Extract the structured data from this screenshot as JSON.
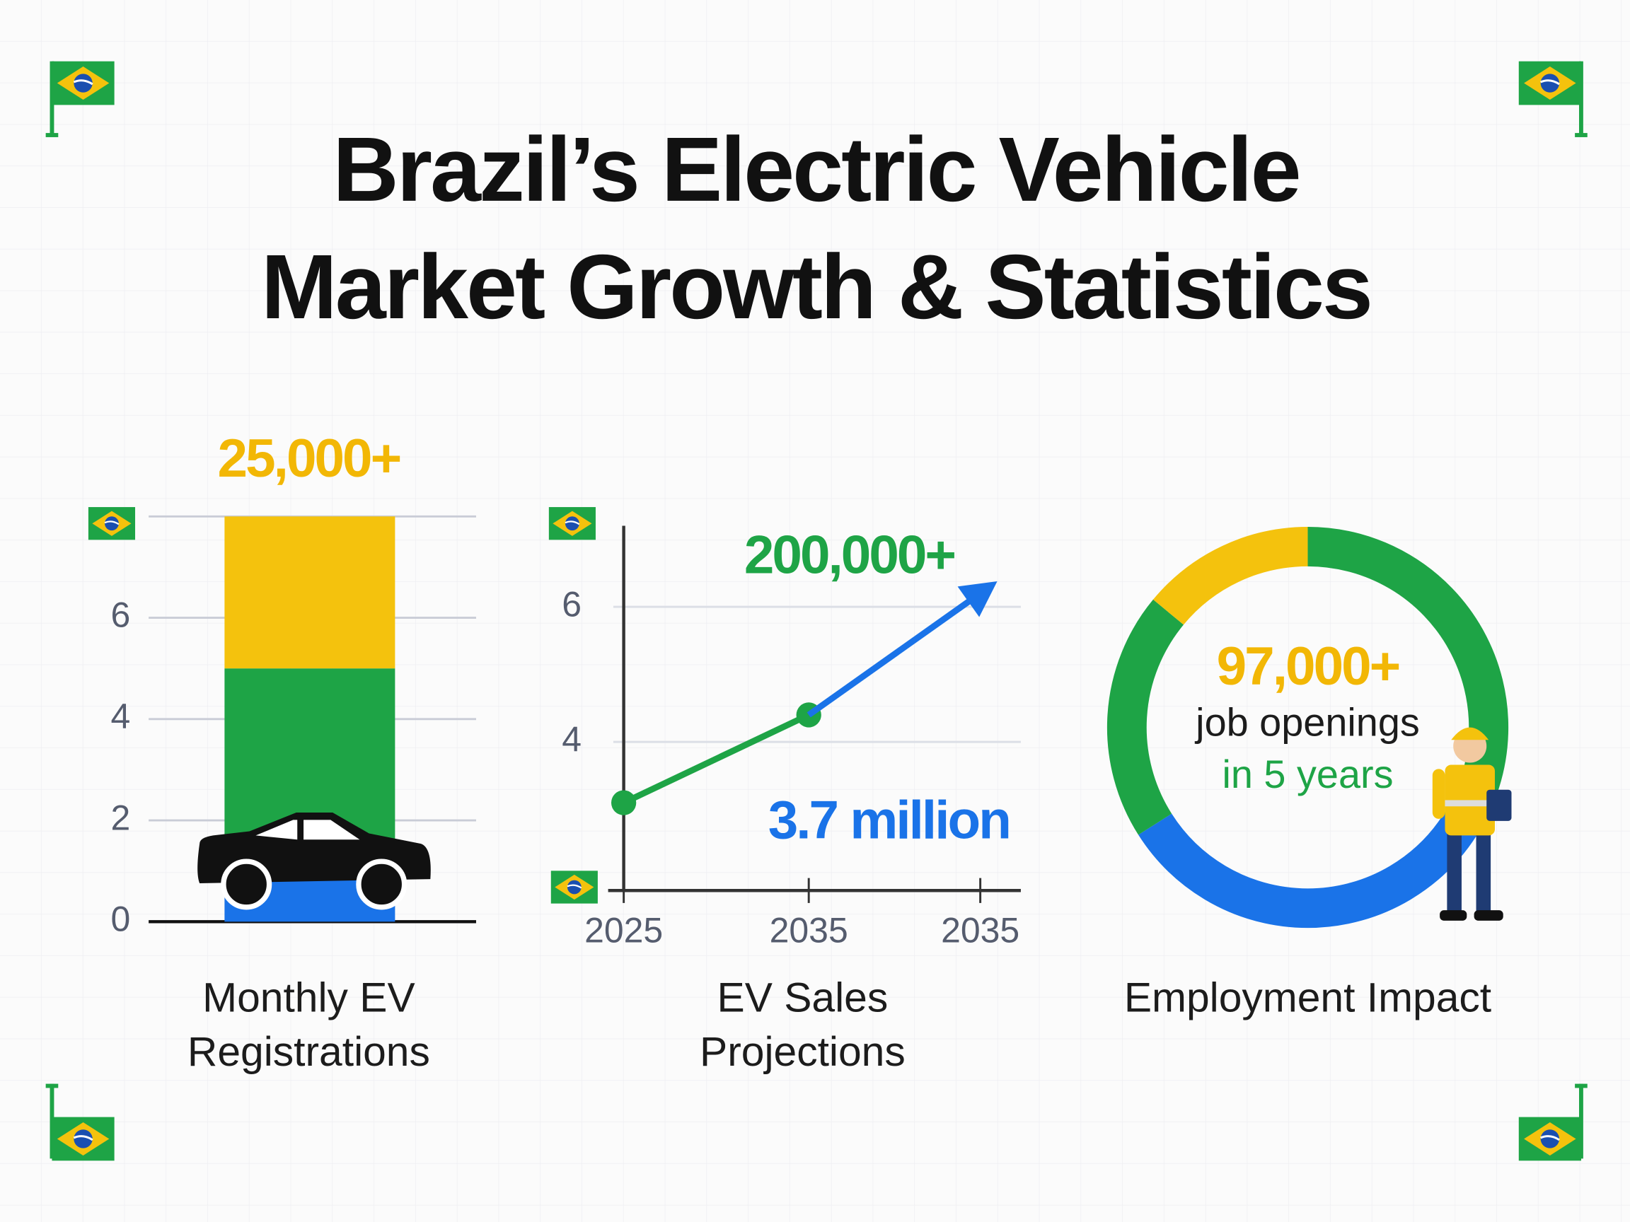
{
  "title": [
    "Brazil’s Electric Vehicle",
    "Market Growth & Statistics"
  ],
  "chart_data": [
    {
      "type": "bar",
      "label": [
        "Monthly EV",
        "Registrations"
      ],
      "annotation": "25,000+",
      "annotation_color": "#f2b705",
      "series": [
        {
          "color": "#1a73e8",
          "values": [
            1
          ]
        },
        {
          "color": "#1ea446",
          "values": [
            4
          ]
        },
        {
          "color": "#f4c20d",
          "values": [
            3
          ]
        }
      ],
      "ylim": [
        0,
        8
      ],
      "yticks": [
        0,
        2,
        4,
        6
      ],
      "grid": true
    },
    {
      "type": "line",
      "label": [
        "EV Sales",
        "Projections"
      ],
      "categories": [
        "2025",
        "2035",
        "2035"
      ],
      "annotations": [
        {
          "text": "200,000+",
          "color": "#1ea446"
        },
        {
          "text": "3.7 million",
          "color": "#1a73e8"
        }
      ],
      "series": [
        {
          "color": "#1ea446",
          "values": [
            3.1,
            4.4,
            null
          ]
        },
        {
          "color": "#1a73e8",
          "values": [
            null,
            4.4,
            6.2
          ]
        }
      ],
      "ylim": [
        1.8,
        7.2
      ],
      "yticks": [
        4,
        6
      ],
      "grid": true
    },
    {
      "type": "donut",
      "label": [
        "Employment Impact"
      ],
      "label_color": "#f2b705",
      "center": [
        {
          "text": "97,000+",
          "color": "#f2b705"
        },
        {
          "text": "job openings",
          "color": "#1c1c1c"
        },
        {
          "text": "in 5 years",
          "color": "#1ea446"
        }
      ],
      "values": [
        34,
        32,
        20,
        14
      ],
      "colors": [
        "#1ea446",
        "#1a73e8",
        "#1ea446",
        "#f4c20d"
      ]
    }
  ]
}
